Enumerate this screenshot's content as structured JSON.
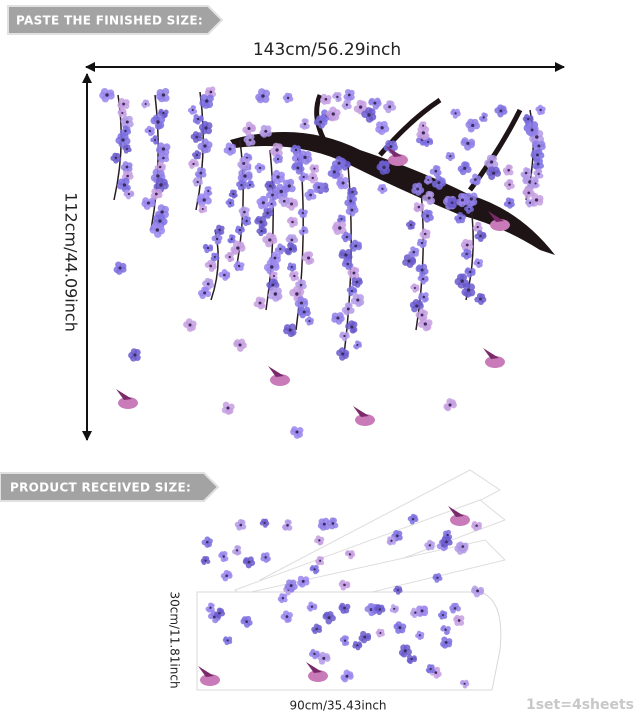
{
  "finished": {
    "banner": "PASTE THE FINISHED SIZE:",
    "width": "143cm/56.29inch",
    "height": "112cm/44.09inch"
  },
  "received": {
    "banner": "PRODUCT RECEIVED SIZE:",
    "height": "30cm/11.81inch",
    "width": "90cm/35.43inch",
    "set": "1set=4sheets"
  }
}
